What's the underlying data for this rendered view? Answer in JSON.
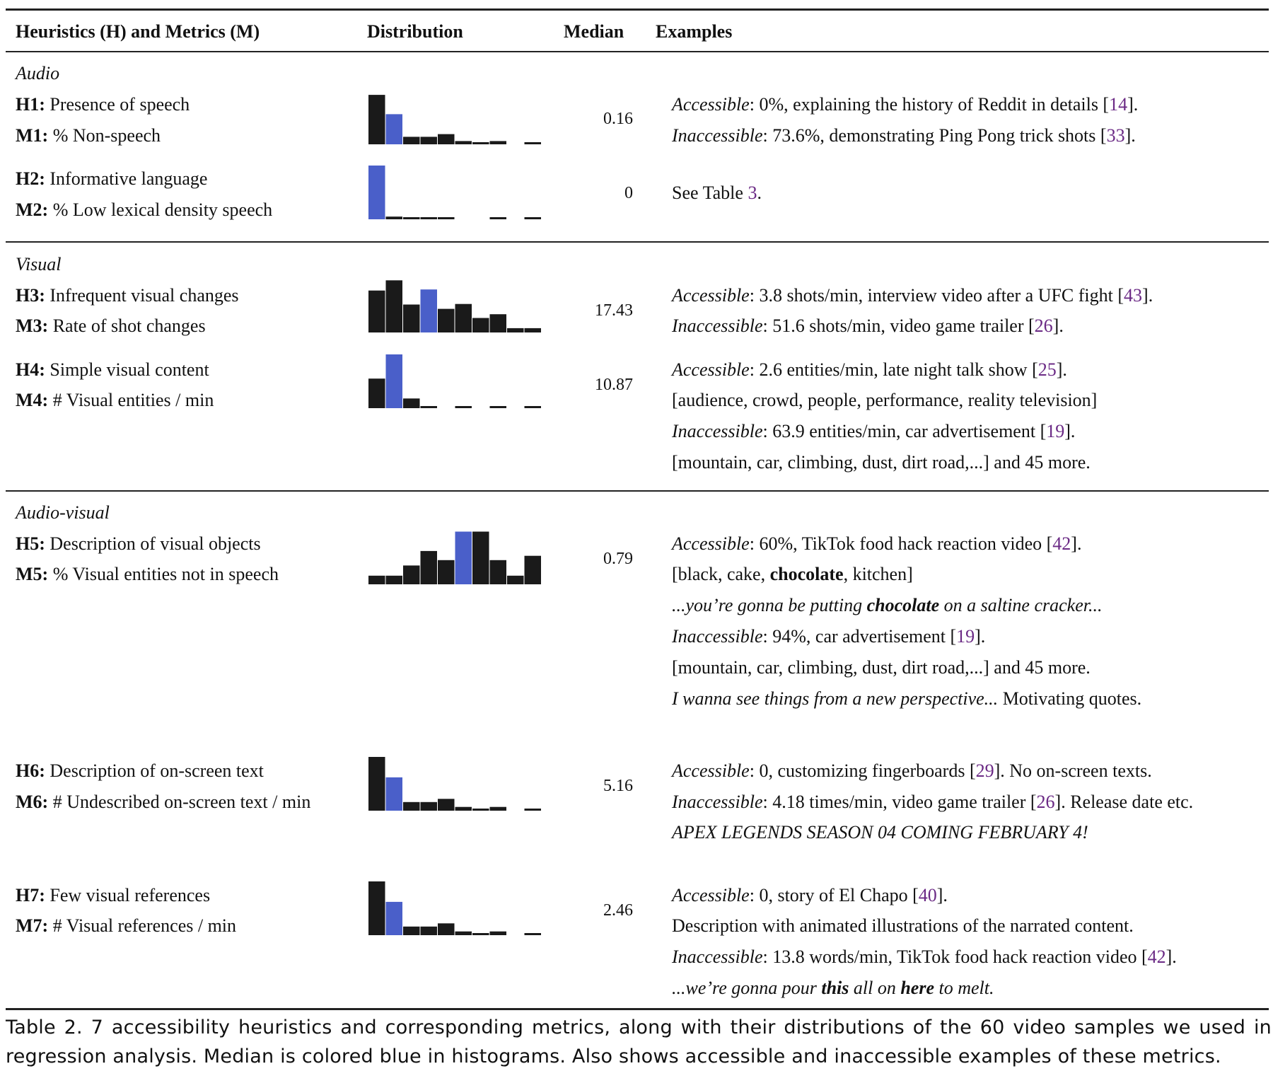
{
  "header": {
    "col_heuristics": "Heuristics (H) and Metrics (M)",
    "col_distribution": "Distribution",
    "col_median": "Median",
    "col_examples": "Examples"
  },
  "sections": {
    "audio": "Audio",
    "visual": "Visual",
    "audio_visual": "Audio-visual"
  },
  "rows": [
    {
      "h_code": "H1:",
      "h_label": "Presence of speech",
      "m_code": "M1:",
      "m_label": "% Non-speech",
      "median": "0.16",
      "hist": {
        "values": [
          0.92,
          0.56,
          0.14,
          0.14,
          0.19,
          0.06,
          0.03,
          0.06,
          0,
          0.02
        ],
        "median_bin": 1
      },
      "examples": {
        "l1": [
          "Accessible",
          ": 0%, explaining the history of Reddit in details [",
          "14",
          "]."
        ],
        "l2": [
          "Inaccessible",
          ": 73.6%, demonstrating Ping Pong trick shots [",
          "33",
          "]."
        ]
      }
    },
    {
      "h_code": "H2:",
      "h_label": "Informative language",
      "m_code": "M2:",
      "m_label": "% Low lexical density speech",
      "median": "0",
      "hist": {
        "values": [
          1.0,
          0.05,
          0.03,
          0.03,
          0.03,
          0,
          0,
          0.02,
          0,
          0.03
        ],
        "median_bin": 0
      },
      "examples": {
        "l1": "See Table ",
        "l1_ref": "3",
        "l1_end": "."
      }
    },
    {
      "h_code": "H3:",
      "h_label": "Infrequent visual changes",
      "m_code": "M3:",
      "m_label": "Rate of shot changes",
      "median": "17.43",
      "hist": {
        "values": [
          0.78,
          0.97,
          0.52,
          0.8,
          0.44,
          0.53,
          0.27,
          0.34,
          0.08,
          0.08
        ],
        "median_bin": 3
      },
      "examples": {
        "l1": [
          "Accessible",
          ": 3.8 shots/min, interview video after a UFC fight [",
          "43",
          "]."
        ],
        "l2": [
          "Inaccessible",
          ": 51.6 shots/min, video game trailer [",
          "26",
          "]."
        ]
      }
    },
    {
      "h_code": "H4:",
      "h_label": "Simple visual content",
      "m_code": "M4:",
      "m_label": "# Visual entities / min",
      "median": "10.87",
      "hist": {
        "values": [
          0.55,
          1.0,
          0.18,
          0.02,
          0,
          0.02,
          0,
          0.02,
          0,
          0.02
        ],
        "median_bin": 1
      },
      "examples": {
        "l1": [
          "Accessible",
          ": 2.6 entities/min, late night talk show [",
          "25",
          "]."
        ],
        "l2": "[audience, crowd, people, performance, reality television]",
        "l3": [
          "Inaccessible",
          ": 63.9 entities/min, car advertisement [",
          "19",
          "]."
        ],
        "l4": "[mountain, car, climbing, dust, dirt road,...] and 45 more."
      }
    },
    {
      "h_code": "H5:",
      "h_label": "Description of visual objects",
      "m_code": "M5:",
      "m_label": "% Visual entities not in speech",
      "median": "0.79",
      "hist": {
        "values": [
          0.16,
          0.16,
          0.35,
          0.62,
          0.45,
          0.98,
          0.98,
          0.45,
          0.16,
          0.53
        ],
        "median_bin": 5
      },
      "examples": {
        "l1": [
          "Accessible",
          ": 60%, TikTok food hack reaction video [",
          "42",
          "]."
        ],
        "l2": [
          "[black, cake, ",
          "chocolate",
          ", kitchen]"
        ],
        "l3": [
          "...you’re gonna be putting ",
          "chocolate",
          " on a saltine cracker..."
        ],
        "l4": [
          "Inaccessible",
          ": 94%, car advertisement [",
          "19",
          "]."
        ],
        "l5": "[mountain, car, climbing, dust, dirt road,...] and 45 more.",
        "l6": [
          "I wanna see things from a new perspective...",
          " Motivating quotes."
        ]
      }
    },
    {
      "h_code": "H6:",
      "h_label": "Description of on-screen text",
      "m_code": "M6:",
      "m_label": "# Undescribed on-screen text / min",
      "median": "5.16",
      "hist": {
        "values": [
          1.0,
          0.62,
          0.16,
          0.16,
          0.22,
          0.07,
          0.04,
          0.07,
          0,
          0.02
        ],
        "median_bin": 1
      },
      "examples": {
        "l1": [
          "Accessible",
          ": 0, customizing fingerboards [",
          "29",
          "]. No on-screen texts."
        ],
        "l2": [
          "Inaccessible",
          ": 4.18 times/min, video game trailer [",
          "26",
          "]. Release date etc."
        ],
        "l3": "APEX LEGENDS SEASON 04 COMING FEBRUARY 4!"
      }
    },
    {
      "h_code": "H7:",
      "h_label": "Few visual references",
      "m_code": "M7:",
      "m_label": "# Visual references / min",
      "median": "2.46",
      "hist": {
        "values": [
          1.0,
          0.62,
          0.16,
          0.16,
          0.22,
          0.07,
          0.04,
          0.07,
          0,
          0.02
        ],
        "median_bin": 1
      },
      "examples": {
        "l1": [
          "Accessible",
          ": 0, story of El Chapo [",
          "40",
          "]."
        ],
        "l2": "Description with animated illustrations of the narrated content.",
        "l3": [
          "Inaccessible",
          ": 13.8 words/min, TikTok food hack reaction video [",
          "42",
          "]."
        ],
        "l4": [
          "...we’re gonna pour ",
          "this",
          " all on ",
          "here",
          " to melt."
        ]
      }
    }
  ],
  "caption": "Table 2.  7 accessibility heuristics and corresponding metrics, along with their distributions of the 60 video samples we used in regression analysis. Median is colored blue in histograms. Also shows accessible and inaccessible examples of these metrics.",
  "colors": {
    "bar": "#1a1a1a",
    "median_bar": "#4a5fc9",
    "citation": "#6b2a85"
  }
}
